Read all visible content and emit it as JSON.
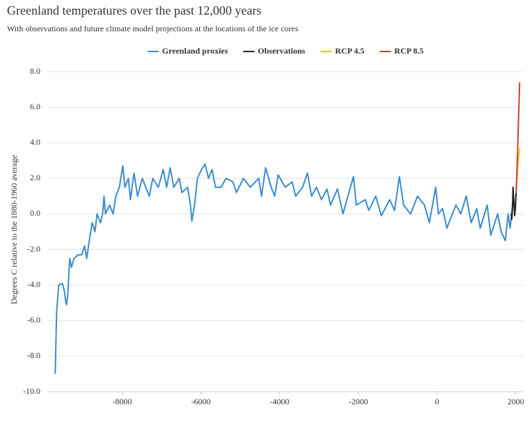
{
  "chart_data": {
    "type": "line",
    "title": "Greenland temperatures over the past 12,000 years",
    "subtitle": "With observations and future climate model projections at the locations of the ice cores",
    "y_label": "Degrees C relative to the 1880-1960 average",
    "xlim": [
      -9900,
      2200
    ],
    "ylim": [
      -10,
      8
    ],
    "xticks": [
      -8000,
      -6000,
      -4000,
      -2000,
      0,
      2000
    ],
    "yticks": [
      {
        "value": -10,
        "label": "-10.0"
      },
      {
        "value": -8,
        "label": "-8.0"
      },
      {
        "value": -6,
        "label": "-6.0"
      },
      {
        "value": -4,
        "label": "-4.0"
      },
      {
        "value": -2,
        "label": "-2.0"
      },
      {
        "value": 0,
        "label": "0.0"
      },
      {
        "value": 2,
        "label": "2.0"
      },
      {
        "value": 4,
        "label": "4.0"
      },
      {
        "value": 6,
        "label": "6.0"
      },
      {
        "value": 8,
        "label": "8.0"
      }
    ],
    "grid": true,
    "legend": "top",
    "series": [
      {
        "name": "Greenland proxies",
        "color": "#3a8ccc",
        "x": [
          -9700,
          -9665,
          -9610,
          -9520,
          -9470,
          -9430,
          -9410,
          -9380,
          -9345,
          -9330,
          -9290,
          -9220,
          -9115,
          -9027,
          -8956,
          -8900,
          -8814,
          -8760,
          -8690,
          -8637,
          -8550,
          -8495,
          -8460,
          -8425,
          -8318,
          -8230,
          -8160,
          -8071,
          -7982,
          -7930,
          -7840,
          -7788,
          -7700,
          -7610,
          -7487,
          -7400,
          -7310,
          -7221,
          -7080,
          -6956,
          -6870,
          -6779,
          -6690,
          -6549,
          -6480,
          -6336,
          -6265,
          -6230,
          -6160,
          -6088,
          -5982,
          -5894,
          -5805,
          -5717,
          -5630,
          -5487,
          -5363,
          -5186,
          -5097,
          -4920,
          -4743,
          -4531,
          -4460,
          -4354,
          -4212,
          -4124,
          -4035,
          -3858,
          -3681,
          -3593,
          -3416,
          -3292,
          -3186,
          -3062,
          -2938,
          -2796,
          -2708,
          -2531,
          -2389,
          -2265,
          -2124,
          -2053,
          -1823,
          -1735,
          -1558,
          -1416,
          -1204,
          -1080,
          -956,
          -850,
          -673,
          -496,
          -319,
          -195,
          -35,
          35,
          142,
          248,
          478,
          602,
          743,
          867,
          1009,
          1097,
          1274,
          1363,
          1540,
          1628,
          1735,
          1805,
          1858,
          1929,
          1965
        ],
        "values": [
          -9.0,
          -5.5,
          -4.0,
          -3.9,
          -4.3,
          -5.0,
          -5.1,
          -4.5,
          -3.0,
          -2.5,
          -3.0,
          -2.5,
          -2.3,
          -2.3,
          -1.8,
          -2.5,
          -1.2,
          -0.5,
          -1.0,
          0.0,
          -0.5,
          0.0,
          1.0,
          0.0,
          0.5,
          0.0,
          1.0,
          1.5,
          2.7,
          1.5,
          2.0,
          0.8,
          2.3,
          1.0,
          2.0,
          1.5,
          1.0,
          2.0,
          1.5,
          2.5,
          1.5,
          2.6,
          1.5,
          2.0,
          1.2,
          1.5,
          0.5,
          -0.4,
          0.5,
          2.0,
          2.5,
          2.8,
          2.0,
          2.5,
          1.5,
          1.5,
          2.0,
          1.8,
          1.2,
          2.0,
          1.5,
          2.0,
          1.0,
          2.6,
          1.5,
          1.0,
          2.2,
          1.5,
          1.8,
          1.0,
          1.5,
          2.3,
          1.0,
          1.5,
          0.8,
          1.4,
          0.5,
          1.4,
          0.0,
          1.0,
          2.1,
          0.5,
          0.8,
          0.2,
          1.0,
          -0.1,
          0.8,
          0.2,
          2.1,
          0.5,
          0.0,
          1.0,
          0.5,
          -0.5,
          1.5,
          0.0,
          0.3,
          -0.8,
          0.5,
          0.0,
          1.0,
          -0.5,
          0.3,
          -0.8,
          0.5,
          -1.2,
          0.0,
          -1.0,
          -1.5,
          0.0,
          -0.8,
          0.8,
          0.5
        ]
      },
      {
        "name": "Observations",
        "color": "#222222",
        "x": [
          1880,
          1900,
          1920,
          1930,
          1950,
          1970,
          1990,
          2000,
          2010
        ],
        "values": [
          0.0,
          -0.3,
          0.5,
          1.5,
          0.8,
          -0.1,
          0.3,
          0.8,
          1.2
        ]
      },
      {
        "name": "RCP 4.5",
        "color": "#f0c419",
        "x": [
          2010,
          2030,
          2050,
          2075,
          2100
        ],
        "values": [
          1.2,
          2.0,
          2.6,
          3.2,
          3.7
        ]
      },
      {
        "name": "RCP 8.5",
        "color": "#c8402c",
        "x": [
          2010,
          2030,
          2050,
          2075,
          2100
        ],
        "values": [
          1.2,
          2.5,
          3.8,
          5.7,
          7.4
        ]
      }
    ]
  }
}
